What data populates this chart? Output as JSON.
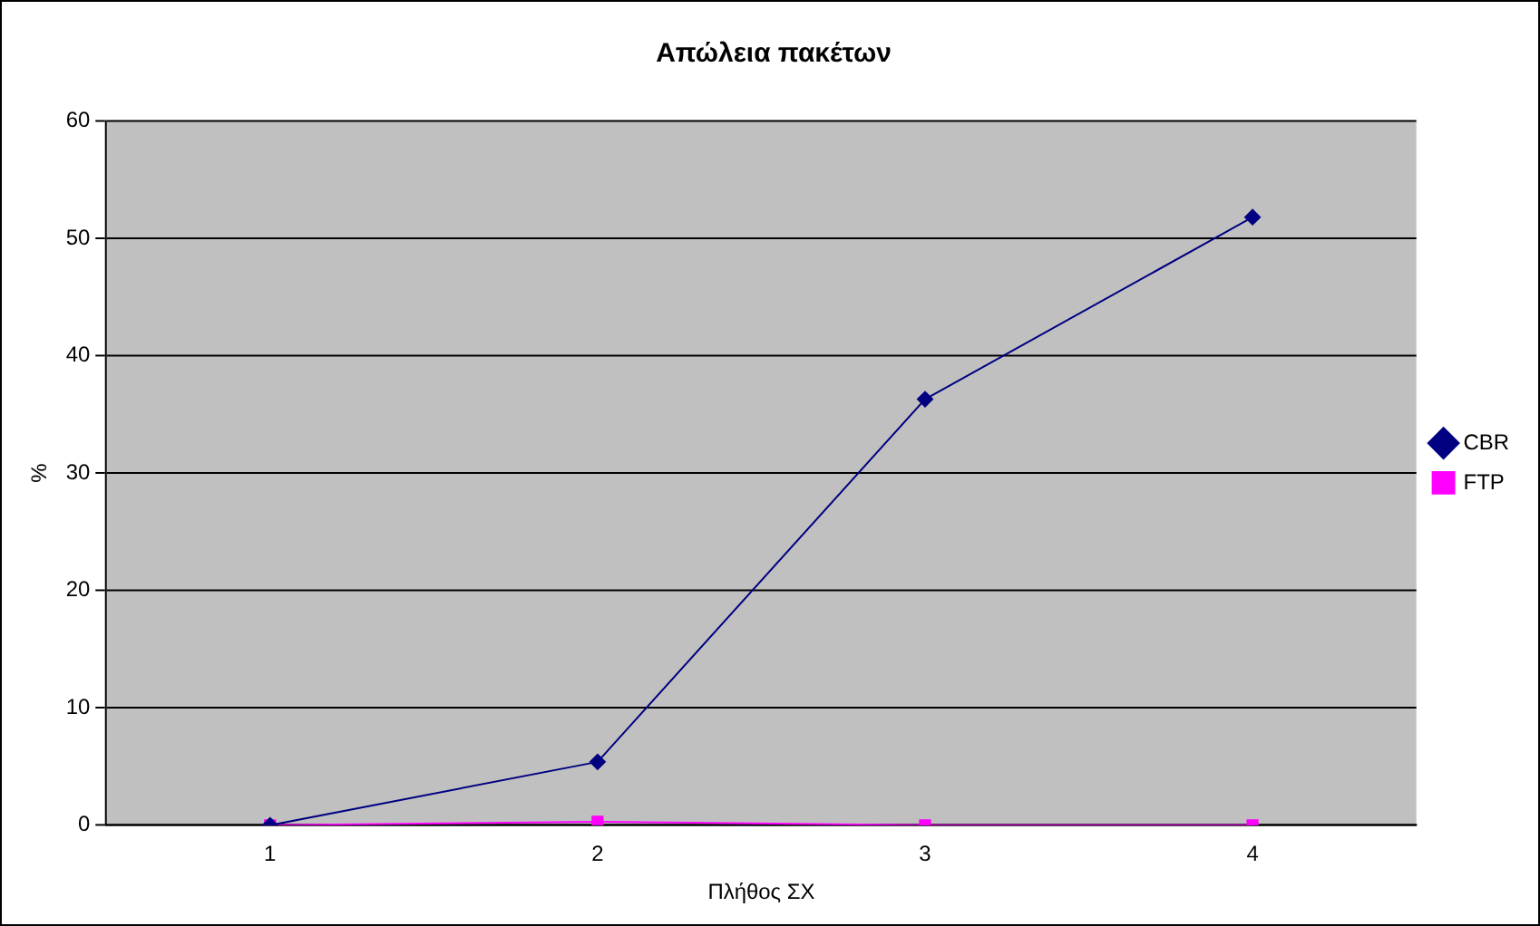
{
  "chart_data": {
    "type": "line",
    "title": "Απώλεια πακέτων",
    "xlabel": "Πλήθος ΣΧ",
    "ylabel": "%",
    "categories": [
      "1",
      "2",
      "3",
      "4"
    ],
    "series": [
      {
        "name": "CBR",
        "color": "#000080",
        "marker": "diamond",
        "values": [
          0,
          5.4,
          36.3,
          51.8
        ]
      },
      {
        "name": "FTP",
        "color": "#ff00ff",
        "marker": "square",
        "values": [
          0,
          0.3,
          0,
          0
        ]
      }
    ],
    "ylim": [
      0,
      60
    ],
    "yticks": [
      0,
      10,
      20,
      30,
      40,
      50,
      60
    ],
    "grid": "y",
    "legend": "right",
    "line_style": "solid"
  }
}
